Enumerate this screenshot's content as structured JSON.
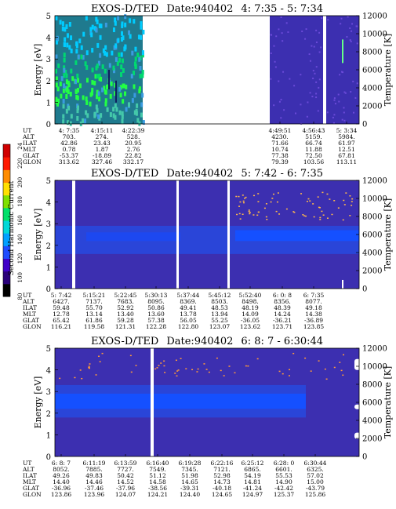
{
  "colorbar": {
    "label": "Second Harmonic Current",
    "ticks": [
      "240",
      "220",
      "200",
      "180",
      "160",
      "140",
      "120",
      "100",
      "80"
    ],
    "colors": [
      "#000000",
      "#2a007a",
      "#3f00c8",
      "#1f4dff",
      "#00a0ff",
      "#00d8d8",
      "#00e06a",
      "#7fe000",
      "#ffe000",
      "#ff8c00",
      "#ff1a00",
      "#d00000"
    ]
  },
  "colors": {
    "background_fill": "#3c2fb0",
    "band_blue": "#1550ff",
    "green_high": "#22ff44",
    "green_low": "#00d870",
    "cyan": "#00ccff",
    "gap": "#ffffff"
  },
  "row_labels": [
    "UT",
    "ALT",
    "ILAT",
    "MLT",
    "GLAT",
    "GLON"
  ],
  "chart_data": [
    {
      "type": "heatmap",
      "title": "EXOS-D/TED",
      "date_label": "Date:940402",
      "range_label": "4: 7:35 - 5: 7:34",
      "ylabel": "Energy [eV]",
      "ylabel_right": "Temperature [K]",
      "ylim": [
        0,
        5
      ],
      "ylim_right": [
        0,
        12000
      ],
      "yticks": [
        "0",
        "1",
        "2",
        "3",
        "4",
        "5"
      ],
      "yticks_right": [
        "0",
        "2000",
        "4000",
        "6000",
        "8000",
        "10000",
        "12000"
      ],
      "data_gaps": "large gap between 4:22:39 and 4:49:51",
      "columns": [
        {
          "UT": "4: 7:35",
          "ALT": "703.",
          "ILAT": "42.86",
          "MLT": "0.78",
          "GLAT": "-53.37",
          "GLON": "313.62"
        },
        {
          "UT": "4:15:11",
          "ALT": "274.",
          "ILAT": "23.43",
          "MLT": "1.87",
          "GLAT": "-18.89",
          "GLON": "327.46"
        },
        {
          "UT": "4:22:39",
          "ALT": "528.",
          "ILAT": "20.95",
          "MLT": "2.76",
          "GLAT": "22.82",
          "GLON": "332.17"
        },
        {
          "UT": "4:49:51",
          "ALT": "4230.",
          "ILAT": "71.66",
          "MLT": "10.74",
          "GLAT": "77.38",
          "GLON": "79.39"
        },
        {
          "UT": "4:56:43",
          "ALT": "5159.",
          "ILAT": "66.74",
          "MLT": "11.88",
          "GLAT": "72.50",
          "GLON": "103.56"
        },
        {
          "UT": "5: 3:34",
          "ALT": "5984.",
          "ILAT": "61.97",
          "MLT": "12.51",
          "GLAT": "67.81",
          "GLON": "113.11"
        }
      ]
    },
    {
      "type": "heatmap",
      "title": "EXOS-D/TED",
      "date_label": "Date:940402",
      "range_label": "5: 7:42 - 6: 7:35",
      "ylabel": "Energy [eV]",
      "ylabel_right": "Temperature [K]",
      "ylim": [
        0,
        5
      ],
      "ylim_right": [
        0,
        12000
      ],
      "yticks": [
        "0",
        "1",
        "2",
        "3",
        "4",
        "5"
      ],
      "yticks_right": [
        "0",
        "2000",
        "4000",
        "6000",
        "8000",
        "10000",
        "12000"
      ],
      "columns": [
        {
          "UT": "5: 7:42",
          "ALT": "6427.",
          "ILAT": "59.48",
          "MLT": "12.78",
          "GLAT": "65.42",
          "GLON": "116.21"
        },
        {
          "UT": "5:15:21",
          "ALT": "7137.",
          "ILAT": "55.70",
          "MLT": "13.14",
          "GLAT": "61.86",
          "GLON": "119.58"
        },
        {
          "UT": "5:22:45",
          "ALT": "7683.",
          "ILAT": "52.92",
          "MLT": "13.40",
          "GLAT": "59.28",
          "GLON": "121.31"
        },
        {
          "UT": "5:30:13",
          "ALT": "8095.",
          "ILAT": "50.86",
          "MLT": "13.60",
          "GLAT": "57.38",
          "GLON": "122.28"
        },
        {
          "UT": "5:37:44",
          "ALT": "8369.",
          "ILAT": "49.41",
          "MLT": "13.78",
          "GLAT": "56.05",
          "GLON": "122.80"
        },
        {
          "UT": "5:45:12",
          "ALT": "8503.",
          "ILAT": "48.53",
          "MLT": "13.94",
          "GLAT": "55.25",
          "GLON": "123.07"
        },
        {
          "UT": "5:52:40",
          "ALT": "8498.",
          "ILAT": "48.19",
          "MLT": "14.09",
          "GLAT": "-36.05",
          "GLON": "123.62"
        },
        {
          "UT": "6: 0: 8",
          "ALT": "8356.",
          "ILAT": "48.39",
          "MLT": "14.24",
          "GLAT": "-36.21",
          "GLON": "123.71"
        },
        {
          "UT": "6: 7:35",
          "ALT": "8077.",
          "ILAT": "49.18",
          "MLT": "14.38",
          "GLAT": "-36.89",
          "GLON": "123.85"
        }
      ]
    },
    {
      "type": "heatmap",
      "title": "EXOS-D/TED",
      "date_label": "Date:940402",
      "range_label": "6: 8: 7 - 6:30:44",
      "ylabel": "Energy [eV]",
      "ylabel_right": "Temperature [K]",
      "ylim": [
        0,
        5
      ],
      "ylim_right": [
        0,
        12000
      ],
      "yticks": [
        "0",
        "1",
        "2",
        "3",
        "4",
        "5"
      ],
      "yticks_right": [
        "0",
        "2000",
        "4000",
        "6000",
        "8000",
        "10000",
        "12000"
      ],
      "columns": [
        {
          "UT": "6: 8: 7",
          "ALT": "8052.",
          "ILAT": "49.26",
          "MLT": "14.40",
          "GLAT": "-36.96",
          "GLON": "123.86"
        },
        {
          "UT": "6:11:19",
          "ALT": "7885.",
          "ILAT": "49.83",
          "MLT": "14.46",
          "GLAT": "-37.46",
          "GLON": "123.96"
        },
        {
          "UT": "6:13:59",
          "ALT": "7727.",
          "ILAT": "50.42",
          "MLT": "14.52",
          "GLAT": "-37.96",
          "GLON": "124.07"
        },
        {
          "UT": "6:16:40",
          "ALT": "7549.",
          "ILAT": "51.12",
          "MLT": "14.58",
          "GLAT": "-38.56",
          "GLON": "124.21"
        },
        {
          "UT": "6:19:28",
          "ALT": "7345.",
          "ILAT": "51.98",
          "MLT": "14.65",
          "GLAT": "-39.31",
          "GLON": "124.40"
        },
        {
          "UT": "6:22:16",
          "ALT": "7121.",
          "ILAT": "52.98",
          "MLT": "14.73",
          "GLAT": "-40.18",
          "GLON": "124.65"
        },
        {
          "UT": "6:25:12",
          "ALT": "6865.",
          "ILAT": "54.19",
          "MLT": "14.81",
          "GLAT": "-41.24",
          "GLON": "124.97"
        },
        {
          "UT": "6:28: 0",
          "ALT": "6601.",
          "ILAT": "55.53",
          "MLT": "14.90",
          "GLAT": "-42.42",
          "GLON": "125.37"
        },
        {
          "UT": "6:30:44",
          "ALT": "6325.",
          "ILAT": "57.02",
          "MLT": "15.00",
          "GLAT": "-43.79",
          "GLON": "125.86"
        }
      ]
    }
  ]
}
